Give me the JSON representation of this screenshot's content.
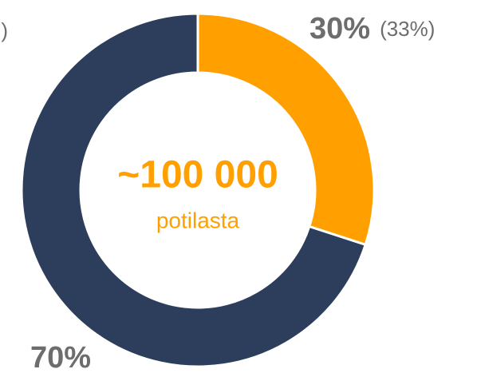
{
  "chart_data": {
    "type": "donut",
    "values": [
      30,
      70
    ],
    "value_labels": [
      "30%",
      "70%"
    ],
    "colors": [
      "#ffa000",
      "#2c3e5c"
    ],
    "comparison_values": [
      33,
      null
    ],
    "comparison_labels": [
      "(33%)",
      null
    ],
    "center_title": "~100 000",
    "center_subtitle": "potilasta",
    "annotations": [
      ")"
    ]
  }
}
